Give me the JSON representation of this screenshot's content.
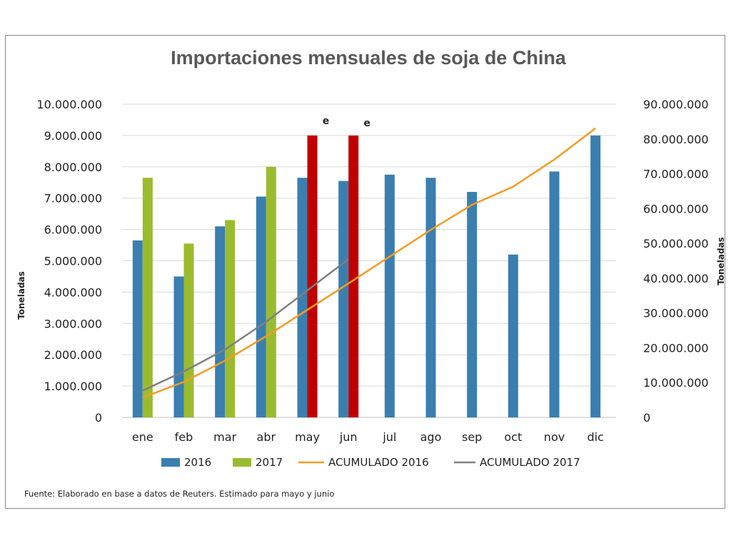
{
  "chart_data": {
    "type": "bar",
    "title": "Importaciones mensuales de soja de China",
    "ylabel": "Toneladas",
    "y2label": "Toneladas",
    "ylim": [
      0,
      10000000
    ],
    "y2lim": [
      0,
      90000000
    ],
    "yticks": [
      "0",
      "1.000.000",
      "2.000.000",
      "3.000.000",
      "4.000.000",
      "5.000.000",
      "6.000.000",
      "7.000.000",
      "8.000.000",
      "9.000.000",
      "10.000.000"
    ],
    "y2ticks": [
      "0",
      "10.000.000",
      "20.000.000",
      "30.000.000",
      "40.000.000",
      "50.000.000",
      "60.000.000",
      "70.000.000",
      "80.000.000",
      "90.000.000"
    ],
    "categories": [
      "ene",
      "feb",
      "mar",
      "abr",
      "may",
      "jun",
      "jul",
      "ago",
      "sep",
      "oct",
      "nov",
      "dic"
    ],
    "series": [
      {
        "name": "2016",
        "kind": "bar",
        "axis": "left",
        "color": "#3a7fb0",
        "values": [
          5650000,
          4500000,
          6100000,
          7050000,
          7650000,
          7550000,
          7750000,
          7650000,
          7200000,
          5200000,
          7850000,
          9000000
        ]
      },
      {
        "name": "2017",
        "kind": "bar",
        "axis": "left",
        "color": "#9bbb2f",
        "estimate_color": "#c00000",
        "values": [
          7650000,
          5550000,
          6300000,
          8000000,
          9000000,
          9000000,
          null,
          null,
          null,
          null,
          null,
          null
        ],
        "estimated": [
          false,
          false,
          false,
          false,
          true,
          true,
          false,
          false,
          false,
          false,
          false,
          false
        ]
      },
      {
        "name": "ACUMULADO 2016",
        "kind": "line",
        "axis": "right",
        "color": "#f39c23",
        "values": [
          5700000,
          10200000,
          16300000,
          23300000,
          30900000,
          38500000,
          46200000,
          53900000,
          61100000,
          66300000,
          74100000,
          83100000
        ]
      },
      {
        "name": "ACUMULADO 2017",
        "kind": "line",
        "axis": "right",
        "color": "#7f7f7f",
        "values": [
          7700000,
          13200000,
          19500000,
          27500000,
          36500000,
          45500000,
          null,
          null,
          null,
          null,
          null,
          null
        ]
      }
    ],
    "annotations": [
      {
        "category": "may",
        "text": "e"
      },
      {
        "category": "jun",
        "text": "e"
      }
    ],
    "legend": "bottom",
    "grid": true
  },
  "source_note": "Fuente: Elaborado en base a datos de Reuters. Estimado para mayo y junio"
}
